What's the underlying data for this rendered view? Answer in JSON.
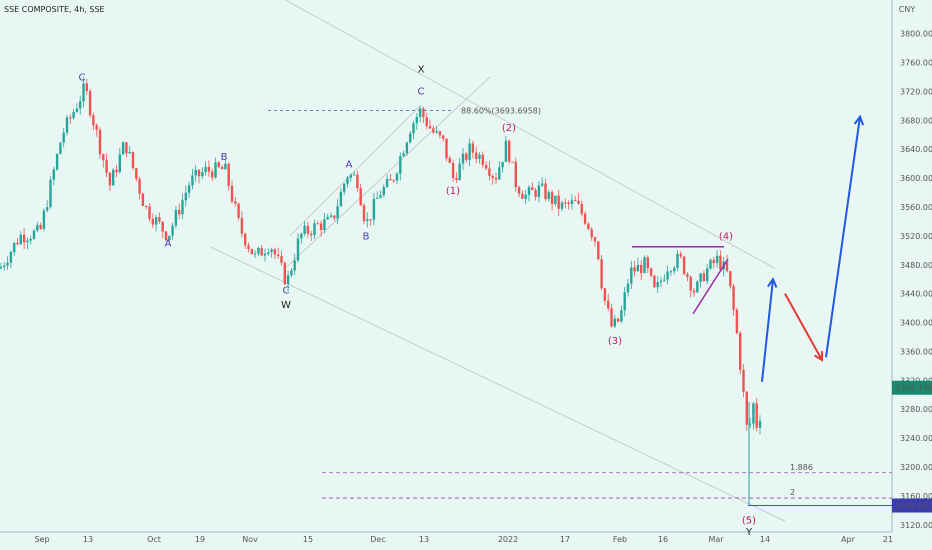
{
  "header": {
    "title": "SSE COMPOSITE, 4h, SSE",
    "currency": "CNY"
  },
  "chart_data": {
    "type": "candlestick",
    "title": "SSE COMPOSITE, 4h, SSE",
    "ylim": [
      3110,
      3830
    ],
    "y_ticks": [
      "3800.0000",
      "3760.0000",
      "3720.0000",
      "3680.0000",
      "3640.0000",
      "3600.0000",
      "3560.0000",
      "3520.0000",
      "3480.0000",
      "3440.0000",
      "3400.0000",
      "3360.0000",
      "3320.0000",
      "3280.0000",
      "3240.0000",
      "3200.0000",
      "3160.0000",
      "3120.0000"
    ],
    "x_ticks": [
      "Sep",
      "13",
      "Oct",
      "19",
      "Nov",
      "15",
      "Dec",
      "13",
      "2022",
      "17",
      "Feb",
      "16",
      "Mar",
      "14",
      "Apr",
      "21"
    ],
    "last_price": "3309.7467",
    "low_price": "3146.6634",
    "fib_annotation": "88.60%(3693.6958)",
    "fib_levels": [
      {
        "label": "1.886",
        "value": 3192
      },
      {
        "label": "2",
        "value": 3157
      }
    ],
    "anchors": [
      {
        "x": 0,
        "y": 3475
      },
      {
        "x": 20,
        "y": 3520
      },
      {
        "x": 40,
        "y": 3525
      },
      {
        "x": 62,
        "y": 3660
      },
      {
        "x": 85,
        "y": 3725
      },
      {
        "x": 97,
        "y": 3660
      },
      {
        "x": 110,
        "y": 3590
      },
      {
        "x": 125,
        "y": 3650
      },
      {
        "x": 145,
        "y": 3560
      },
      {
        "x": 168,
        "y": 3520
      },
      {
        "x": 190,
        "y": 3595
      },
      {
        "x": 205,
        "y": 3610
      },
      {
        "x": 225,
        "y": 3612
      },
      {
        "x": 240,
        "y": 3530
      },
      {
        "x": 255,
        "y": 3490
      },
      {
        "x": 270,
        "y": 3510
      },
      {
        "x": 287,
        "y": 3455
      },
      {
        "x": 300,
        "y": 3520
      },
      {
        "x": 318,
        "y": 3535
      },
      {
        "x": 332,
        "y": 3540
      },
      {
        "x": 347,
        "y": 3605
      },
      {
        "x": 357,
        "y": 3600
      },
      {
        "x": 366,
        "y": 3535
      },
      {
        "x": 380,
        "y": 3580
      },
      {
        "x": 392,
        "y": 3595
      },
      {
        "x": 410,
        "y": 3670
      },
      {
        "x": 420,
        "y": 3693
      },
      {
        "x": 432,
        "y": 3665
      },
      {
        "x": 443,
        "y": 3650
      },
      {
        "x": 453,
        "y": 3600
      },
      {
        "x": 470,
        "y": 3640
      },
      {
        "x": 485,
        "y": 3625
      },
      {
        "x": 495,
        "y": 3600
      },
      {
        "x": 507,
        "y": 3648
      },
      {
        "x": 515,
        "y": 3595
      },
      {
        "x": 525,
        "y": 3575
      },
      {
        "x": 540,
        "y": 3585
      },
      {
        "x": 560,
        "y": 3560
      },
      {
        "x": 575,
        "y": 3565
      },
      {
        "x": 585,
        "y": 3545
      },
      {
        "x": 597,
        "y": 3510
      },
      {
        "x": 603,
        "y": 3440
      },
      {
        "x": 612,
        "y": 3392
      },
      {
        "x": 620,
        "y": 3405
      },
      {
        "x": 630,
        "y": 3470
      },
      {
        "x": 645,
        "y": 3480
      },
      {
        "x": 655,
        "y": 3440
      },
      {
        "x": 668,
        "y": 3480
      },
      {
        "x": 680,
        "y": 3488
      },
      {
        "x": 695,
        "y": 3442
      },
      {
        "x": 705,
        "y": 3470
      },
      {
        "x": 718,
        "y": 3488
      },
      {
        "x": 728,
        "y": 3465
      },
      {
        "x": 736,
        "y": 3395
      },
      {
        "x": 742,
        "y": 3320
      },
      {
        "x": 748,
        "y": 3238
      },
      {
        "x": 753,
        "y": 3290
      },
      {
        "x": 758,
        "y": 3248
      },
      {
        "x": 763,
        "y": 3310
      }
    ],
    "projection_blue_1": [
      {
        "x": 762,
        "y": 3318
      },
      {
        "x": 773,
        "y": 3460
      }
    ],
    "projection_red": [
      {
        "x": 785,
        "y": 3440
      },
      {
        "x": 822,
        "y": 3348
      }
    ],
    "projection_blue_2": [
      {
        "x": 826,
        "y": 3352
      },
      {
        "x": 860,
        "y": 3685
      }
    ],
    "triangle_top": [
      {
        "x": 632,
        "y": 3505
      },
      {
        "x": 724,
        "y": 3505
      }
    ],
    "triangle_bottom": [
      {
        "x": 693,
        "y": 3412
      },
      {
        "x": 728,
        "y": 3488
      }
    ],
    "channel_lines": [
      {
        "from": {
          "x": 215,
          "y": 3900
        },
        "to": {
          "x": 775,
          "y": 3475
        }
      },
      {
        "from": {
          "x": 210,
          "y": 3505
        },
        "to": {
          "x": 785,
          "y": 3125
        }
      },
      {
        "from": {
          "x": 285,
          "y": 3475
        },
        "to": {
          "x": 490,
          "y": 3740
        }
      },
      {
        "from": {
          "x": 290,
          "y": 3520
        },
        "to": {
          "x": 420,
          "y": 3700
        }
      }
    ],
    "fib_ref_line": {
      "from": {
        "x": 268,
        "y": 3693.6958
      },
      "to": {
        "x": 452,
        "y": 3693.6958
      }
    },
    "wave_labels": [
      {
        "text": "C",
        "x": 82,
        "y": 3735,
        "color": "purple"
      },
      {
        "text": "A",
        "x": 168,
        "y": 3505,
        "color": "purple"
      },
      {
        "text": "B",
        "x": 224,
        "y": 3625,
        "color": "purple"
      },
      {
        "text": "C",
        "x": 286,
        "y": 3440,
        "color": "purple"
      },
      {
        "text": "W",
        "x": 286,
        "y": 3420,
        "color": "black"
      },
      {
        "text": "A",
        "x": 349,
        "y": 3615,
        "color": "purple"
      },
      {
        "text": "B",
        "x": 366,
        "y": 3515,
        "color": "purple"
      },
      {
        "text": "X",
        "x": 421,
        "y": 3746,
        "color": "black"
      },
      {
        "text": "C",
        "x": 421,
        "y": 3716,
        "color": "purple"
      },
      {
        "text": "(1)",
        "x": 453,
        "y": 3578,
        "color": "red"
      },
      {
        "text": "(2)",
        "x": 509,
        "y": 3665,
        "color": "red"
      },
      {
        "text": "(3)",
        "x": 615,
        "y": 3370,
        "color": "red"
      },
      {
        "text": "(4)",
        "x": 726,
        "y": 3515,
        "color": "red"
      },
      {
        "text": "(5)",
        "x": 749,
        "y": 3122,
        "color": "red"
      },
      {
        "text": "Y",
        "x": 749,
        "y": 3106,
        "color": "black"
      }
    ]
  }
}
